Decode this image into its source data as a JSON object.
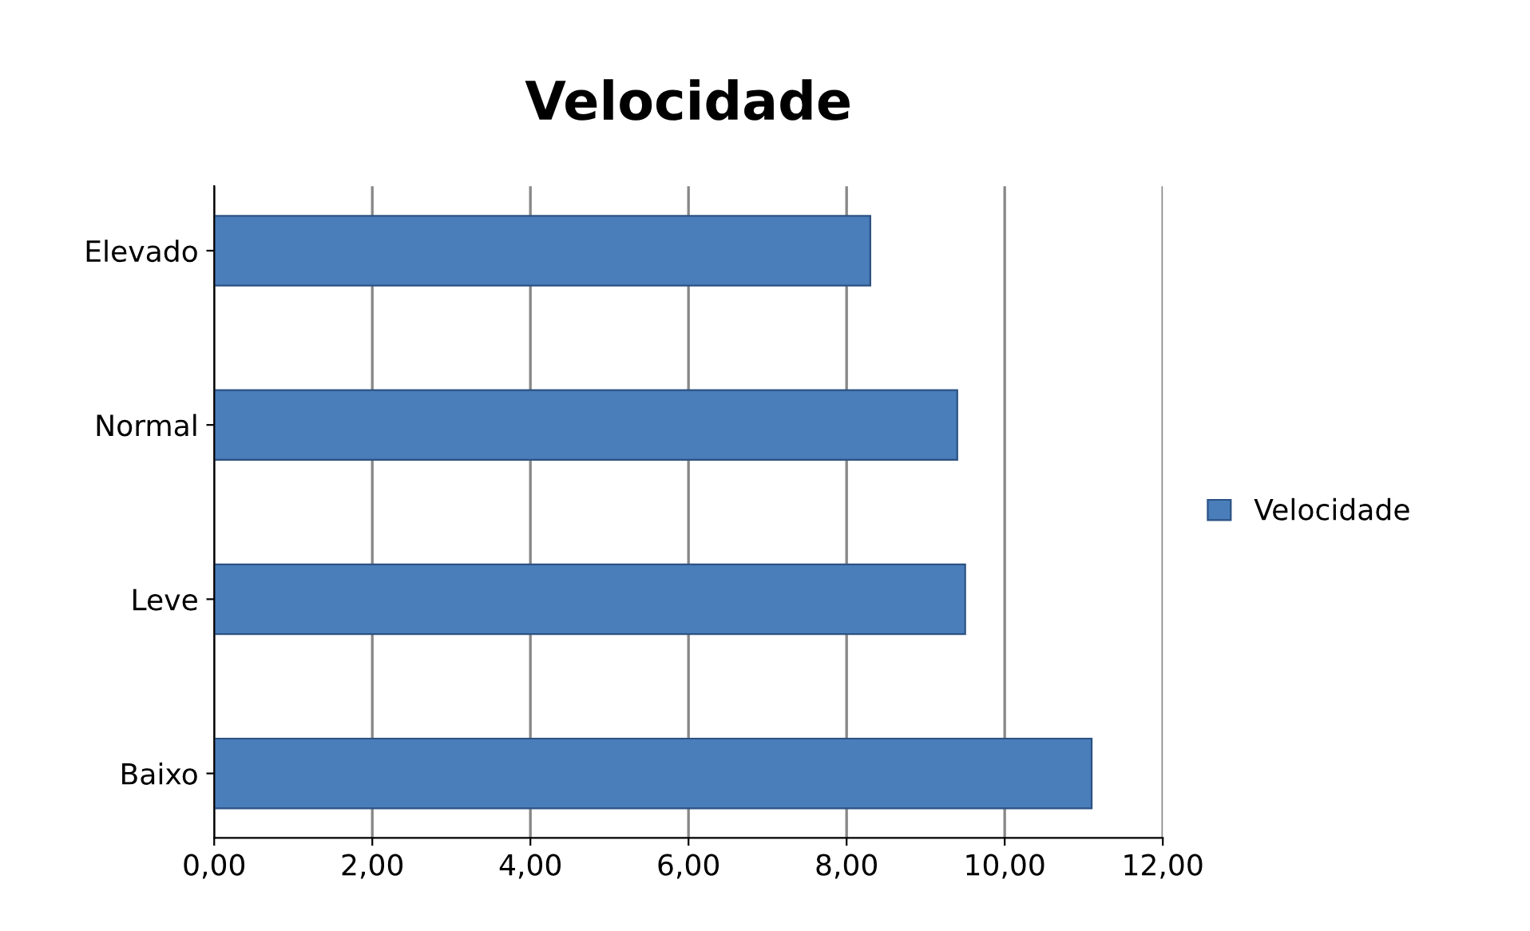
{
  "chart_data": {
    "type": "bar",
    "orientation": "horizontal",
    "title": "Velocidade",
    "categories": [
      "Elevado",
      "Normal",
      "Leve",
      "Baixo"
    ],
    "series": [
      {
        "name": "Velocidade",
        "color": "#4a7ebb",
        "values": [
          8.3,
          9.4,
          9.5,
          11.1
        ]
      }
    ],
    "xlim": [
      0,
      12
    ],
    "xticks": [
      {
        "value": 0,
        "label": "0,00"
      },
      {
        "value": 2,
        "label": "2,00"
      },
      {
        "value": 4,
        "label": "4,00"
      },
      {
        "value": 6,
        "label": "6,00"
      },
      {
        "value": 8,
        "label": "8,00"
      },
      {
        "value": 10,
        "label": "10,00"
      },
      {
        "value": 12,
        "label": "12,00"
      }
    ],
    "grid": "x",
    "legend": "right"
  }
}
